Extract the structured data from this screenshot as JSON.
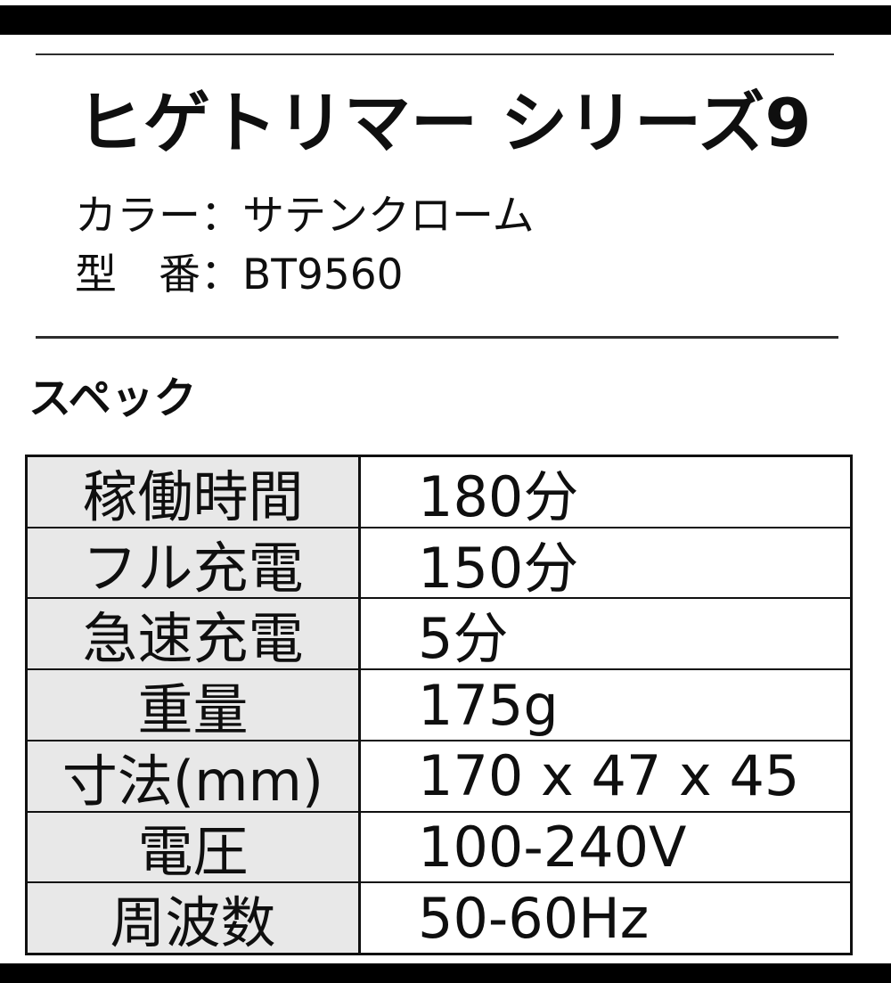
{
  "product": {
    "title": "ヒゲトリマー シリーズ9",
    "color_line": "カラー：サテンクローム",
    "model_line": "型　番：BT9560"
  },
  "spec_section": {
    "heading": "スペック"
  },
  "spec_table": {
    "type": "table",
    "rows": [
      {
        "label": "稼働時間",
        "value": "180分"
      },
      {
        "label": "フル充電",
        "value": "150分"
      },
      {
        "label": "急速充電",
        "value": "5分"
      },
      {
        "label": "重量",
        "value": "175g"
      },
      {
        "label": "寸法(mm)",
        "value": "170 x 47 x 45"
      },
      {
        "label": "電圧",
        "value": "100-240V"
      },
      {
        "label": "周波数",
        "value": "50-60Hz"
      }
    ]
  },
  "colors": {
    "page_background": "#ffffff",
    "bar": "#000000",
    "rule": "#2d2d2d",
    "table_border": "#101010",
    "label_cell_background": "#e8e8e8",
    "text": "#0f0f0f"
  }
}
